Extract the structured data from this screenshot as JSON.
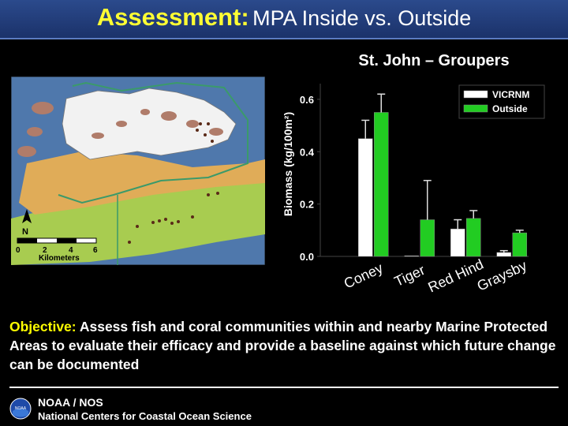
{
  "slide": {
    "title_highlight": "Assessment:",
    "title_rest": "MPA Inside vs. Outside",
    "objective_label": "Objective:",
    "objective_text": "Assess fish and coral communities within and nearby Marine Protected Areas to evaluate their efficacy and provide a baseline against which future change can be documented",
    "footer_org": "NOAA / NOS",
    "footer_center": "National Centers for Coastal Ocean Science",
    "logo_text": "NOAA"
  },
  "map": {
    "scale_labels": [
      "0",
      "2",
      "4",
      "6"
    ],
    "scale_unit": "Kilometers",
    "north_label": "N",
    "colors": {
      "water": "#4f78ac",
      "land": "#f0f0f0",
      "reef": "#e0ac58",
      "seagrass": "#a8cc50",
      "mpa_outline": "#3b9a6a"
    }
  },
  "chart_data": {
    "type": "bar",
    "title": "St. John – Groupers",
    "ylabel": "Biomass (kg/100m²)",
    "xlabel": "",
    "ylim": [
      0,
      0.66
    ],
    "yticks": [
      0.0,
      0.2,
      0.4,
      0.6
    ],
    "ytick_labels": [
      "0.0",
      "0.2",
      "0.4",
      "0.6"
    ],
    "categories": [
      "Coney",
      "Tiger",
      "Red Hind",
      "Graysby"
    ],
    "legend_position": "top-right",
    "series": [
      {
        "name": "VICRNM",
        "color": "#ffffff",
        "values": [
          0.45,
          0.0,
          0.105,
          0.015
        ],
        "errors": [
          0.07,
          0.0,
          0.035,
          0.007
        ]
      },
      {
        "name": "Outside",
        "color": "#22cc22",
        "values": [
          0.55,
          0.14,
          0.145,
          0.09
        ],
        "errors": [
          0.07,
          0.15,
          0.03,
          0.01
        ]
      }
    ],
    "colors": {
      "axis": "#444444",
      "plot_bg": "#000000",
      "grid": false
    }
  }
}
